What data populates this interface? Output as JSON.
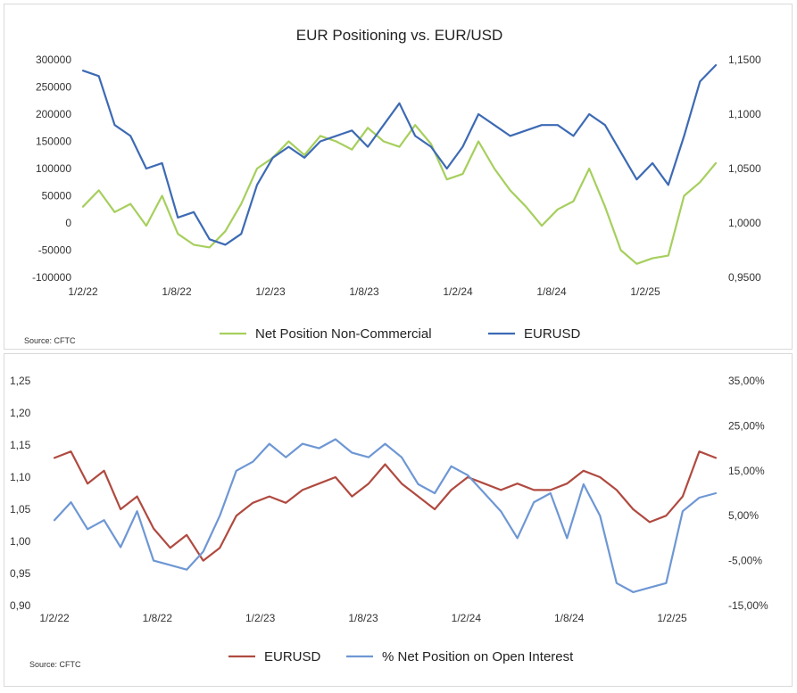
{
  "chart_data": [
    {
      "type": "line",
      "title": "EUR Positioning vs. EUR/USD",
      "source": "Source: CFTC",
      "x_ticks": [
        "1/2/22",
        "1/8/22",
        "1/2/23",
        "1/8/23",
        "1/2/24",
        "1/8/24",
        "1/2/25"
      ],
      "y_left": {
        "min": -100000,
        "max": 300000,
        "ticks": [
          "-100000",
          "-50000",
          "0",
          "50000",
          "100000",
          "150000",
          "200000",
          "250000",
          "300000"
        ]
      },
      "y_right": {
        "min": 0.95,
        "max": 1.15,
        "ticks": [
          "0,9500",
          "1,0000",
          "1,0500",
          "1,1000",
          "1,1500"
        ]
      },
      "legend_position": "bottom",
      "series": [
        {
          "name": "Net Position Non-Commercial",
          "axis": "left",
          "color": "#a6cf5d",
          "x": [
            0,
            1,
            2,
            3,
            4,
            5,
            6,
            7,
            8,
            9,
            10,
            11,
            12,
            13,
            14,
            15,
            16,
            17,
            18,
            19,
            20,
            21,
            22,
            23,
            24,
            25,
            26,
            27,
            28,
            29,
            30,
            31,
            32,
            33,
            34,
            35,
            36,
            37,
            38,
            39,
            40
          ],
          "y": [
            30000,
            60000,
            20000,
            35000,
            -5000,
            50000,
            -20000,
            -40000,
            -45000,
            -15000,
            35000,
            100000,
            120000,
            150000,
            125000,
            160000,
            150000,
            135000,
            175000,
            150000,
            140000,
            180000,
            145000,
            80000,
            90000,
            150000,
            100000,
            60000,
            30000,
            -5000,
            25000,
            40000,
            100000,
            30000,
            -50000,
            -75000,
            -65000,
            -60000,
            50000,
            75000,
            110000
          ]
        },
        {
          "name": "EURUSD",
          "axis": "right",
          "color": "#3d6ab4",
          "x": [
            0,
            1,
            2,
            3,
            4,
            5,
            6,
            7,
            8,
            9,
            10,
            11,
            12,
            13,
            14,
            15,
            16,
            17,
            18,
            19,
            20,
            21,
            22,
            23,
            24,
            25,
            26,
            27,
            28,
            29,
            30,
            31,
            32,
            33,
            34,
            35,
            36,
            37,
            38,
            39,
            40
          ],
          "y": [
            1.14,
            1.135,
            1.09,
            1.08,
            1.05,
            1.055,
            1.005,
            1.01,
            0.985,
            0.98,
            0.99,
            1.035,
            1.06,
            1.07,
            1.06,
            1.075,
            1.08,
            1.085,
            1.07,
            1.09,
            1.11,
            1.08,
            1.07,
            1.05,
            1.07,
            1.1,
            1.09,
            1.08,
            1.085,
            1.09,
            1.09,
            1.08,
            1.1,
            1.09,
            1.065,
            1.04,
            1.055,
            1.035,
            1.08,
            1.13,
            1.145
          ]
        }
      ]
    },
    {
      "type": "line",
      "title": "",
      "source": "Source: CFTC",
      "x_ticks": [
        "1/2/22",
        "1/8/22",
        "1/2/23",
        "1/8/23",
        "1/2/24",
        "1/8/24",
        "1/2/25"
      ],
      "y_left": {
        "min": 0.9,
        "max": 1.25,
        "ticks": [
          "0,90",
          "0,95",
          "1,00",
          "1,05",
          "1,10",
          "1,15",
          "1,20",
          "1,25"
        ]
      },
      "y_right": {
        "min": -15,
        "max": 35,
        "ticks": [
          "-15,00%",
          "-5,00%",
          "5,00%",
          "15,00%",
          "25,00%",
          "35,00%"
        ]
      },
      "legend_position": "bottom",
      "series": [
        {
          "name": "EURUSD",
          "axis": "left",
          "color": "#b04a40",
          "x": [
            0,
            1,
            2,
            3,
            4,
            5,
            6,
            7,
            8,
            9,
            10,
            11,
            12,
            13,
            14,
            15,
            16,
            17,
            18,
            19,
            20,
            21,
            22,
            23,
            24,
            25,
            26,
            27,
            28,
            29,
            30,
            31,
            32,
            33,
            34,
            35,
            36,
            37,
            38,
            39,
            40
          ],
          "y": [
            1.13,
            1.14,
            1.09,
            1.11,
            1.05,
            1.07,
            1.02,
            0.99,
            1.01,
            0.97,
            0.99,
            1.04,
            1.06,
            1.07,
            1.06,
            1.08,
            1.09,
            1.1,
            1.07,
            1.09,
            1.12,
            1.09,
            1.07,
            1.05,
            1.08,
            1.1,
            1.09,
            1.08,
            1.09,
            1.08,
            1.08,
            1.09,
            1.11,
            1.1,
            1.08,
            1.05,
            1.03,
            1.04,
            1.07,
            1.14,
            1.13
          ]
        },
        {
          "name": "% Net Position on Open Interest",
          "axis": "right",
          "color": "#6e97d4",
          "x": [
            0,
            1,
            2,
            3,
            4,
            5,
            6,
            7,
            8,
            9,
            10,
            11,
            12,
            13,
            14,
            15,
            16,
            17,
            18,
            19,
            20,
            21,
            22,
            23,
            24,
            25,
            26,
            27,
            28,
            29,
            30,
            31,
            32,
            33,
            34,
            35,
            36,
            37,
            38,
            39,
            40
          ],
          "y": [
            4,
            8,
            2,
            4,
            -2,
            6,
            -5,
            -6,
            -7,
            -3,
            5,
            15,
            17,
            21,
            18,
            21,
            20,
            22,
            19,
            18,
            21,
            18,
            12,
            10,
            16,
            14,
            10,
            6,
            0,
            8,
            10,
            0,
            12,
            5,
            -10,
            -12,
            -11,
            -10,
            6,
            9,
            10
          ]
        }
      ]
    }
  ]
}
